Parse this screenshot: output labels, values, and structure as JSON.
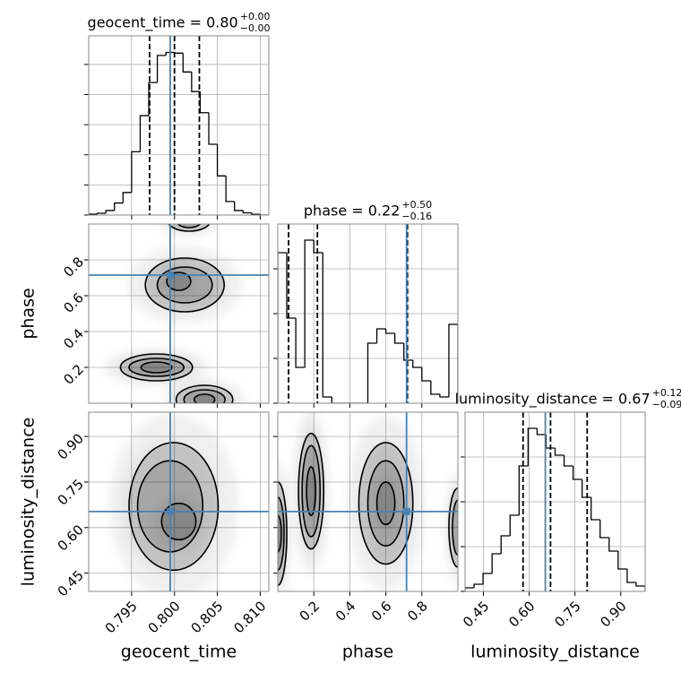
{
  "chart_data": {
    "type": "corner",
    "grid": true,
    "truth_color": "#4682b4",
    "parameters": [
      {
        "name": "geocent_time",
        "title": "geocent_time = 0.80",
        "title_plus": "+0.00",
        "title_minus": "−0.00",
        "lim": [
          0.79,
          0.811
        ],
        "ticks": [
          0.795,
          {
            "value": 0.8,
            "label": "0.800"
          },
          0.805,
          {
            "value": 0.81,
            "label": "0.810"
          }
        ],
        "truth": 0.7995,
        "quantiles": [
          0.7971,
          0.8,
          0.8029
        ],
        "hist": {
          "bins": [
            0.79,
            0.791,
            0.792,
            0.793,
            0.794,
            0.795,
            0.796,
            0.797,
            0.798,
            0.799,
            0.8,
            0.801,
            0.802,
            0.803,
            0.804,
            0.805,
            0.806,
            0.807,
            0.808,
            0.809,
            0.81,
            0.811
          ],
          "counts": [
            6,
            12,
            30,
            80,
            150,
            420,
            660,
            880,
            1060,
            1080,
            1075,
            950,
            820,
            680,
            470,
            260,
            90,
            30,
            15,
            5,
            0
          ],
          "ylim": [
            0,
            1190
          ],
          "yticks": [
            0,
            200,
            400,
            600,
            800,
            1000
          ]
        }
      },
      {
        "name": "phase",
        "title": "phase = 0.22",
        "title_plus": "+0.50",
        "title_minus": "−0.16",
        "lim": [
          0,
          1
        ],
        "ticks": [
          0.2,
          0.4,
          0.6,
          0.8
        ],
        "truth": 0.715,
        "quantiles": [
          0.06,
          0.22,
          0.72
        ],
        "hist": {
          "bins": [
            0,
            0.05,
            0.1,
            0.15,
            0.2,
            0.25,
            0.3,
            0.35,
            0.4,
            0.45,
            0.5,
            0.55,
            0.6,
            0.65,
            0.7,
            0.75,
            0.8,
            0.85,
            0.9,
            0.95,
            1
          ],
          "counts": [
            168,
            95,
            40,
            182,
            168,
            7,
            0,
            0,
            0,
            0,
            67,
            83,
            78,
            67,
            48,
            40,
            25,
            10,
            7,
            88
          ],
          "ylim": [
            0,
            200
          ],
          "yticks": [
            0,
            50,
            100,
            150
          ]
        }
      },
      {
        "name": "luminosity_distance",
        "title": "luminosity_distance = 0.67",
        "title_plus": "+0.12",
        "title_minus": "−0.09",
        "lim": [
          0.39,
          0.98
        ],
        "ticks": [
          0.45,
          {
            "value": 0.6,
            "label": "0.60"
          },
          0.75,
          {
            "value": 0.9,
            "label": "0.90"
          }
        ],
        "truth": 0.653,
        "quantiles": [
          0.58,
          0.67,
          0.79
        ],
        "hist": {
          "bins": [
            0.39,
            0.4195,
            0.449,
            0.4785,
            0.508,
            0.5375,
            0.567,
            0.5965,
            0.626,
            0.6555,
            0.685,
            0.7145,
            0.744,
            0.7735,
            0.803,
            0.8325,
            0.862,
            0.8915,
            0.921,
            0.9505,
            0.98
          ],
          "counts": [
            4,
            8,
            20,
            42,
            62,
            85,
            140,
            182,
            175,
            160,
            152,
            140,
            125,
            105,
            80,
            60,
            45,
            25,
            10,
            6
          ],
          "ylim": [
            0,
            200
          ],
          "yticks": [
            0,
            50,
            100,
            150
          ]
        }
      }
    ],
    "pairs": [
      {
        "x_param": "geocent_time",
        "y_param": "phase",
        "contours": [
          {
            "x": 0.8017,
            "y": 1.02,
            "rx": 0.0025,
            "ry": 0.06
          },
          {
            "x": 0.8017,
            "y": 1.02,
            "rx": 0.0015,
            "ry": 0.04
          },
          {
            "x": 0.8012,
            "y": 0.66,
            "rx": 0.0046,
            "ry": 0.15
          },
          {
            "x": 0.8012,
            "y": 0.66,
            "rx": 0.0032,
            "ry": 0.1
          },
          {
            "x": 0.8005,
            "y": 0.68,
            "rx": 0.0014,
            "ry": 0.05
          },
          {
            "x": 0.7979,
            "y": 0.2,
            "rx": 0.0042,
            "ry": 0.075
          },
          {
            "x": 0.7979,
            "y": 0.2,
            "rx": 0.0032,
            "ry": 0.05
          },
          {
            "x": 0.7979,
            "y": 0.2,
            "rx": 0.0018,
            "ry": 0.03
          },
          {
            "x": 0.8035,
            "y": 0.02,
            "rx": 0.0033,
            "ry": 0.08
          },
          {
            "x": 0.8035,
            "y": 0.02,
            "rx": 0.0024,
            "ry": 0.055
          },
          {
            "x": 0.8035,
            "y": 0.02,
            "rx": 0.0012,
            "ry": 0.03
          }
        ]
      },
      {
        "x_param": "geocent_time",
        "y_param": "luminosity_distance",
        "contours": [
          {
            "x": 0.7999,
            "y": 0.67,
            "rx": 0.0052,
            "ry": 0.21
          },
          {
            "x": 0.7995,
            "y": 0.67,
            "rx": 0.0038,
            "ry": 0.15
          },
          {
            "x": 0.8005,
            "y": 0.62,
            "rx": 0.002,
            "ry": 0.06
          }
        ]
      },
      {
        "x_param": "phase",
        "y_param": "luminosity_distance",
        "contours": [
          {
            "x": 0,
            "y": 0.58,
            "rx": 0.05,
            "ry": 0.17
          },
          {
            "x": 0,
            "y": 0.58,
            "rx": 0.035,
            "ry": 0.12
          },
          {
            "x": 0,
            "y": 0.58,
            "rx": 0.02,
            "ry": 0.06
          },
          {
            "x": 0.185,
            "y": 0.72,
            "rx": 0.07,
            "ry": 0.19
          },
          {
            "x": 0.185,
            "y": 0.72,
            "rx": 0.05,
            "ry": 0.15
          },
          {
            "x": 0.185,
            "y": 0.72,
            "rx": 0.025,
            "ry": 0.08
          },
          {
            "x": 0.6,
            "y": 0.68,
            "rx": 0.15,
            "ry": 0.2
          },
          {
            "x": 0.6,
            "y": 0.68,
            "rx": 0.1,
            "ry": 0.14
          },
          {
            "x": 0.6,
            "y": 0.68,
            "rx": 0.05,
            "ry": 0.07
          },
          {
            "x": 1,
            "y": 0.6,
            "rx": 0.05,
            "ry": 0.13
          },
          {
            "x": 1,
            "y": 0.6,
            "rx": 0.03,
            "ry": 0.09
          }
        ]
      }
    ]
  }
}
